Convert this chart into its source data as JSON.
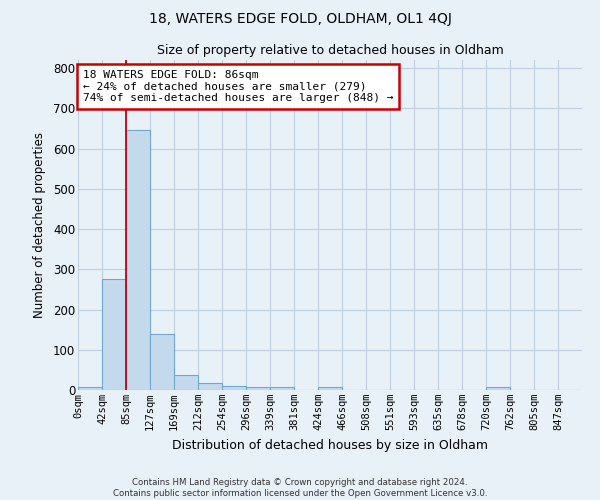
{
  "title": "18, WATERS EDGE FOLD, OLDHAM, OL1 4QJ",
  "subtitle": "Size of property relative to detached houses in Oldham",
  "xlabel": "Distribution of detached houses by size in Oldham",
  "ylabel": "Number of detached properties",
  "bin_labels": [
    "0sqm",
    "42sqm",
    "85sqm",
    "127sqm",
    "169sqm",
    "212sqm",
    "254sqm",
    "296sqm",
    "339sqm",
    "381sqm",
    "424sqm",
    "466sqm",
    "508sqm",
    "551sqm",
    "593sqm",
    "635sqm",
    "678sqm",
    "720sqm",
    "762sqm",
    "805sqm",
    "847sqm"
  ],
  "bar_values": [
    7,
    275,
    645,
    138,
    38,
    18,
    10,
    7,
    7,
    0,
    7,
    0,
    0,
    0,
    0,
    0,
    0,
    7,
    0,
    0,
    0
  ],
  "bar_color": "#c5d9ed",
  "bar_edge_color": "#6aaad4",
  "property_line_color": "#cc0000",
  "ylim": [
    0,
    820
  ],
  "yticks": [
    0,
    100,
    200,
    300,
    400,
    500,
    600,
    700,
    800
  ],
  "annotation_text": "18 WATERS EDGE FOLD: 86sqm\n← 24% of detached houses are smaller (279)\n74% of semi-detached houses are larger (848) →",
  "annotation_box_facecolor": "#ffffff",
  "annotation_box_edgecolor": "#cc0000",
  "footer_line1": "Contains HM Land Registry data © Crown copyright and database right 2024.",
  "footer_line2": "Contains public sector information licensed under the Open Government Licence v3.0.",
  "bg_color": "#e8f0f8",
  "grid_color": "#c0cfe0",
  "title_fontsize": 10,
  "subtitle_fontsize": 9
}
